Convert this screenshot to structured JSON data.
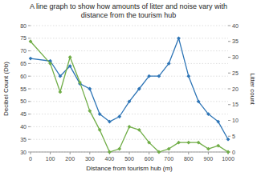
{
  "chart_data": {
    "type": "line",
    "title": "A line graph to show how amounts of litter and noise vary with\ndistance from the tourism hub",
    "xlabel": "Distance from tourism hub (m)",
    "ylabel": "Decibel Count (Db)",
    "y2label": "Litter count",
    "x": [
      0,
      100,
      150,
      200,
      250,
      300,
      350,
      400,
      450,
      500,
      550,
      600,
      650,
      700,
      750,
      800,
      850,
      900,
      950,
      1000
    ],
    "series": [
      {
        "color": "#2E75B6",
        "marker": "diamond",
        "values": [
          67,
          66,
          60,
          64,
          57,
          55,
          45,
          42,
          44,
          50,
          55,
          60,
          60,
          65,
          75,
          60,
          50,
          45,
          42,
          35
        ]
      },
      {
        "color": "#70AD47",
        "marker": "diamond",
        "axis": "y2",
        "values": [
          35,
          28,
          19,
          30,
          22,
          13,
          7,
          0,
          1,
          8,
          7,
          3,
          0,
          1,
          3,
          3,
          3,
          1,
          2,
          0
        ]
      }
    ],
    "xlim": [
      0,
      1000
    ],
    "xticks": [
      0,
      100,
      200,
      300,
      400,
      500,
      600,
      700,
      800,
      900,
      1000
    ],
    "ylim": [
      30,
      80
    ],
    "yticks": [
      30,
      35,
      40,
      45,
      50,
      55,
      60,
      65,
      70,
      75,
      80
    ],
    "y2lim": [
      0,
      40
    ],
    "y2ticks": [
      0,
      5,
      10,
      15,
      20,
      25,
      30,
      35,
      40
    ],
    "grid": true
  }
}
